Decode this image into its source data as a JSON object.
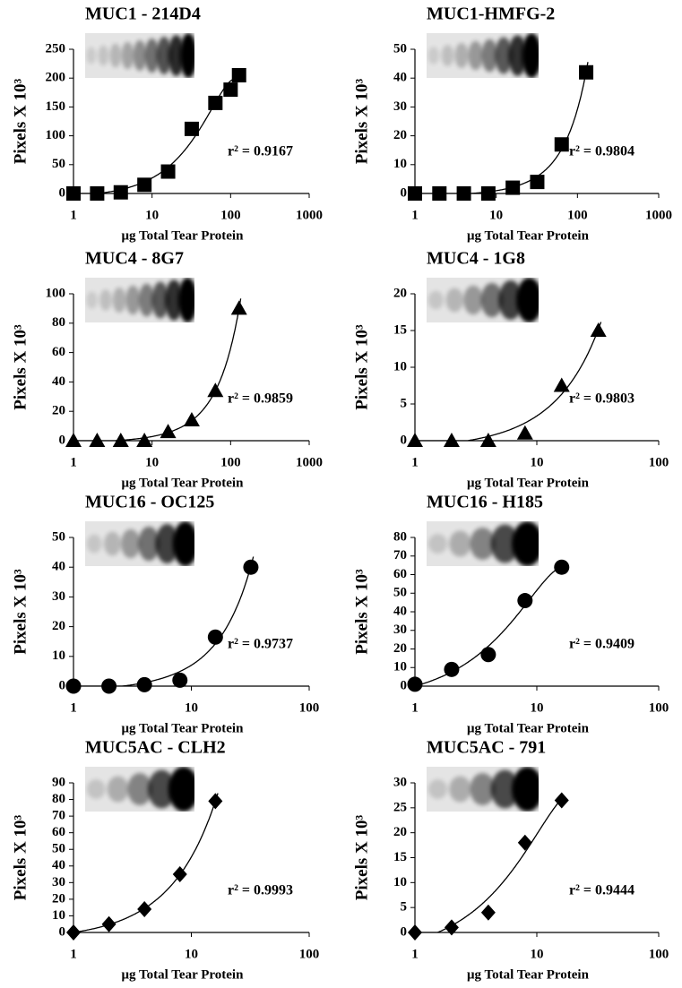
{
  "chart_data": [
    {
      "type": "scatter",
      "title": "MUC1 - 214D4",
      "ylabel": "Pixels X 10³",
      "xlabel": "μg Total Tear Protein",
      "annotation": "r² = 0.9167",
      "marker": "square",
      "color": "#000000",
      "log_x": true,
      "trendline": true,
      "x": [
        1,
        2,
        4,
        8,
        16,
        32,
        64,
        100,
        128
      ],
      "values": [
        0,
        0,
        2,
        15,
        38,
        112,
        157,
        180,
        205
      ],
      "xlim": [
        1,
        1000
      ],
      "xticks": [
        1,
        10,
        100,
        1000
      ],
      "ylim": [
        0,
        250
      ],
      "yticks": [
        0,
        50,
        100,
        150,
        200,
        250
      ]
    },
    {
      "type": "scatter",
      "title": "MUC1-HMFG-2",
      "ylabel": "Pixels X 10³",
      "xlabel": "μg Total Tear Protein",
      "annotation": "r² = 0.9804",
      "marker": "square",
      "color": "#000000",
      "log_x": true,
      "trendline": true,
      "x": [
        1,
        2,
        4,
        8,
        16,
        32,
        64,
        128
      ],
      "values": [
        0,
        0,
        0,
        0,
        2,
        4,
        17,
        42
      ],
      "xlim": [
        1,
        1000
      ],
      "xticks": [
        1,
        10,
        100,
        1000
      ],
      "ylim": [
        0,
        50
      ],
      "yticks": [
        0,
        10,
        20,
        30,
        40,
        50
      ]
    },
    {
      "type": "scatter",
      "title": "MUC4 - 8G7",
      "ylabel": "Pixels X 10³",
      "xlabel": "μg Total Tear Protein",
      "annotation": "r² = 0.9859",
      "marker": "triangle",
      "color": "#000000",
      "log_x": true,
      "trendline": true,
      "x": [
        1,
        2,
        4,
        8,
        16,
        32,
        64,
        128
      ],
      "values": [
        0,
        0,
        0,
        0,
        6,
        14,
        34,
        90
      ],
      "xlim": [
        1,
        1000
      ],
      "xticks": [
        1,
        10,
        100,
        1000
      ],
      "ylim": [
        0,
        100
      ],
      "yticks": [
        0,
        20,
        40,
        60,
        80,
        100
      ]
    },
    {
      "type": "scatter",
      "title": "MUC4 - 1G8",
      "ylabel": "Pixels X 10³",
      "xlabel": "μg Total Tear Protein",
      "annotation": "r² = 0.9803",
      "marker": "triangle",
      "color": "#000000",
      "log_x": true,
      "trendline": true,
      "x": [
        1,
        2,
        4,
        8,
        16,
        32
      ],
      "values": [
        0,
        0,
        0,
        1,
        7.5,
        15
      ],
      "xlim": [
        1,
        100
      ],
      "xticks": [
        1,
        10,
        100
      ],
      "ylim": [
        0,
        20
      ],
      "yticks": [
        0,
        5,
        10,
        15,
        20
      ]
    },
    {
      "type": "scatter",
      "title": "MUC16 - OC125",
      "ylabel": "Pixels X 10³",
      "xlabel": "μg Total Tear Protein",
      "annotation": "r² = 0.9737",
      "marker": "circle",
      "color": "#000000",
      "log_x": true,
      "trendline": true,
      "x": [
        1,
        2,
        4,
        8,
        16,
        32
      ],
      "values": [
        0,
        0,
        0.5,
        2,
        16.5,
        40
      ],
      "xlim": [
        1,
        100
      ],
      "xticks": [
        1,
        10,
        100
      ],
      "ylim": [
        0,
        50
      ],
      "yticks": [
        0,
        10,
        20,
        30,
        40,
        50
      ]
    },
    {
      "type": "scatter",
      "title": "MUC16 - H185",
      "ylabel": "Pixels X 10³",
      "xlabel": "μg Total Tear Protein",
      "annotation": "r² = 0.9409",
      "marker": "circle",
      "color": "#000000",
      "log_x": true,
      "trendline": true,
      "x": [
        1,
        2,
        4,
        8,
        16
      ],
      "values": [
        1,
        9,
        17,
        46,
        64
      ],
      "xlim": [
        1,
        100
      ],
      "xticks": [
        1,
        10,
        100
      ],
      "ylim": [
        0,
        80
      ],
      "yticks": [
        0,
        10,
        20,
        30,
        40,
        50,
        60,
        70,
        80
      ]
    },
    {
      "type": "scatter",
      "title": "MUC5AC - CLH2",
      "ylabel": "Pixels X 10³",
      "xlabel": "μg Total Tear Protein",
      "annotation": "r² = 0.9993",
      "marker": "diamond",
      "color": "#000000",
      "log_x": true,
      "trendline": true,
      "x": [
        1,
        2,
        4,
        8,
        16
      ],
      "values": [
        0,
        5,
        14,
        35,
        79
      ],
      "xlim": [
        1,
        100
      ],
      "xticks": [
        1,
        10,
        100
      ],
      "ylim": [
        0,
        90
      ],
      "yticks": [
        0,
        10,
        20,
        30,
        40,
        50,
        60,
        70,
        80,
        90
      ]
    },
    {
      "type": "scatter",
      "title": "MUC5AC - 791",
      "ylabel": "Pixels X 10³",
      "xlabel": "μg Total Tear Protein",
      "annotation": "r² = 0.9444",
      "marker": "diamond",
      "color": "#000000",
      "log_x": true,
      "trendline": true,
      "x": [
        1,
        2,
        4,
        8,
        16
      ],
      "values": [
        0,
        1,
        4,
        18,
        26.5
      ],
      "xlim": [
        1,
        100
      ],
      "xticks": [
        1,
        10,
        100
      ],
      "ylim": [
        0,
        30
      ],
      "yticks": [
        0,
        5,
        10,
        15,
        20,
        25,
        30
      ]
    }
  ]
}
